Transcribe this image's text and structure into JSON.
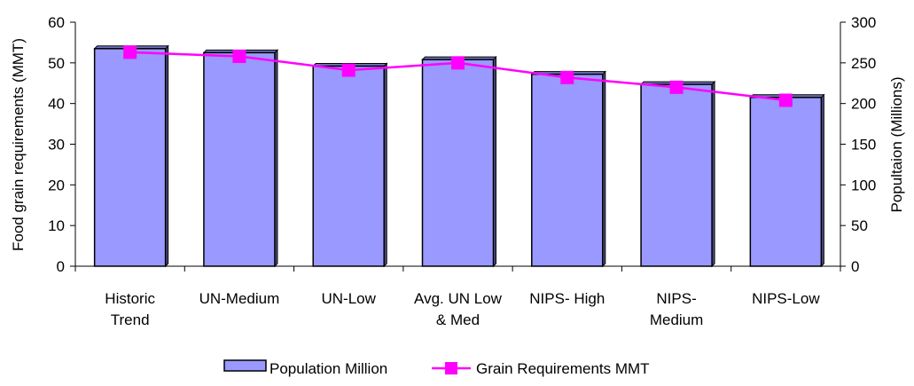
{
  "chart_data": {
    "type": "bar",
    "categories": [
      [
        "Historic",
        "Trend"
      ],
      [
        "UN-Medium"
      ],
      [
        "UN-Low"
      ],
      [
        "Avg. UN Low",
        "& Med"
      ],
      [
        "NIPS- High"
      ],
      [
        "NIPS-",
        "Medium"
      ],
      [
        "NIPS-Low"
      ]
    ],
    "series": [
      {
        "name": "Population Million",
        "type": "bar",
        "axis": "left",
        "color": "#9999ff",
        "values": [
          53.5,
          52.5,
          49.2,
          50.8,
          47.2,
          44.7,
          41.5
        ]
      },
      {
        "name": "Grain Requirements MMT",
        "type": "line",
        "axis": "right",
        "color": "#ff00ff",
        "values": [
          263,
          258,
          241,
          250,
          232,
          220,
          204
        ]
      }
    ],
    "ylabel_left": "Food grain requirements (MMT)",
    "ylabel_right": "Popultaion (Millions)",
    "ylim_left": [
      0,
      60
    ],
    "ylim_right": [
      0,
      300
    ],
    "yticks_left": [
      "0",
      "10",
      "20",
      "30",
      "40",
      "50",
      "60"
    ],
    "yticks_right": [
      "0",
      "50",
      "100",
      "150",
      "200",
      "250",
      "300"
    ],
    "grid": false,
    "legend_position": "bottom"
  }
}
